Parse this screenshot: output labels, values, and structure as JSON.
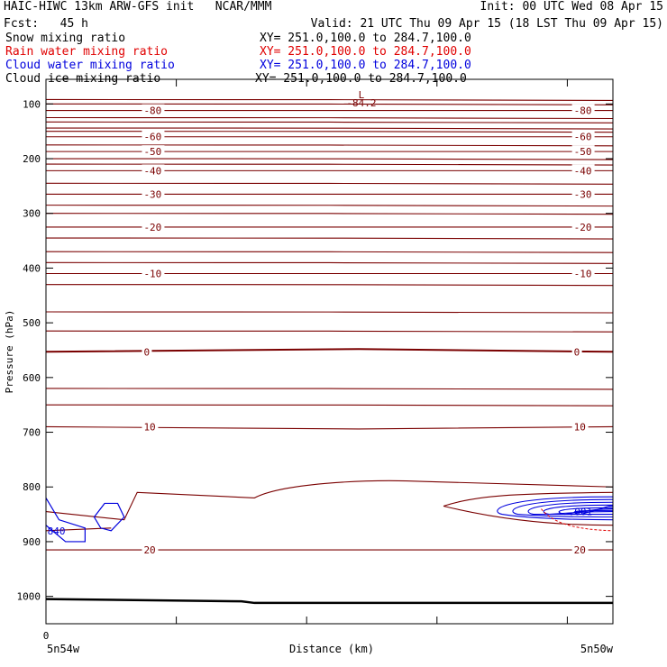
{
  "header": {
    "title": "HAIC-HIWC 13km ARW-GFS init   NCAR/MMM",
    "init": "Init: 00 UTC Wed 08 Apr 15",
    "fcst_label": "Fcst:   45 h",
    "valid": "Valid: 21 UTC Thu 09 Apr 15 (18 LST Thu 09 Apr 15)"
  },
  "legend": [
    {
      "name": "Snow mixing ratio",
      "xsect": "XY= 251.0,100.0 to 284.7,100.0",
      "color": "#000000"
    },
    {
      "name": "Rain water mixing ratio",
      "xsect": "XY= 251.0,100.0 to 284.7,100.0",
      "color": "#e00000"
    },
    {
      "name": "Cloud water mixing ratio",
      "xsect": "XY= 251.0,100.0 to 284.7,100.0",
      "color": "#0000dd"
    },
    {
      "name": "Cloud ice mixing ratio",
      "xsect": "XY= 251.0,100.0 to 284.7,100.0",
      "color": "#000000"
    }
  ],
  "chart_data": {
    "type": "line",
    "title": "",
    "xlabel": "Distance (km)",
    "ylabel": "Pressure (hPa)",
    "x_ticks": [
      "0"
    ],
    "x_endpoints": [
      "5n54w",
      "5n50w"
    ],
    "xlim": [
      0,
      4.35
    ],
    "y_ticks": [
      "100",
      "200",
      "300",
      "400",
      "500",
      "600",
      "700",
      "800",
      "900",
      "1000"
    ],
    "ylim": [
      1050,
      55
    ],
    "temperature_contours": [
      {
        "label": "-80",
        "values": [
          {
            "x": 0,
            "y": 112
          },
          {
            "x": 4.35,
            "y": 112
          }
        ]
      },
      {
        "label": "-60",
        "values": [
          {
            "x": 0,
            "y": 160
          },
          {
            "x": 4.35,
            "y": 160
          }
        ]
      },
      {
        "label": "-50",
        "values": [
          {
            "x": 0,
            "y": 187
          },
          {
            "x": 4.35,
            "y": 187
          }
        ]
      },
      {
        "label": "-40",
        "values": [
          {
            "x": 0,
            "y": 222
          },
          {
            "x": 4.35,
            "y": 222
          }
        ]
      },
      {
        "label": "-30",
        "values": [
          {
            "x": 0,
            "y": 265
          },
          {
            "x": 4.35,
            "y": 265
          }
        ]
      },
      {
        "label": "-20",
        "values": [
          {
            "x": 0,
            "y": 325
          },
          {
            "x": 4.35,
            "y": 325
          }
        ]
      },
      {
        "label": "-10",
        "values": [
          {
            "x": 0,
            "y": 410
          },
          {
            "x": 4.35,
            "y": 410
          }
        ]
      },
      {
        "label": "0",
        "values": [
          {
            "x": 0,
            "y": 553
          },
          {
            "x": 2.4,
            "y": 548
          },
          {
            "x": 4.35,
            "y": 553
          }
        ]
      },
      {
        "label": "10",
        "values": [
          {
            "x": 0,
            "y": 690
          },
          {
            "x": 2.4,
            "y": 694
          },
          {
            "x": 4.35,
            "y": 690
          }
        ]
      },
      {
        "label": "20",
        "values": [
          {
            "x": 0,
            "y": 915
          },
          {
            "x": 4.35,
            "y": 915
          }
        ]
      }
    ],
    "annotations": [
      {
        "text": "L",
        "x": 2.42,
        "y": 83
      },
      {
        "text": "-84.2",
        "x": 2.42,
        "y": 98
      },
      {
        "text": "840",
        "x": 0.08,
        "y": 880
      },
      {
        "text": ".001",
        "x": 4.1,
        "y": 845
      }
    ],
    "series": [
      {
        "name": "Cloud water mixing ratio",
        "color": "#0000dd"
      },
      {
        "name": "Rain water mixing ratio",
        "color": "#e00000"
      }
    ]
  }
}
